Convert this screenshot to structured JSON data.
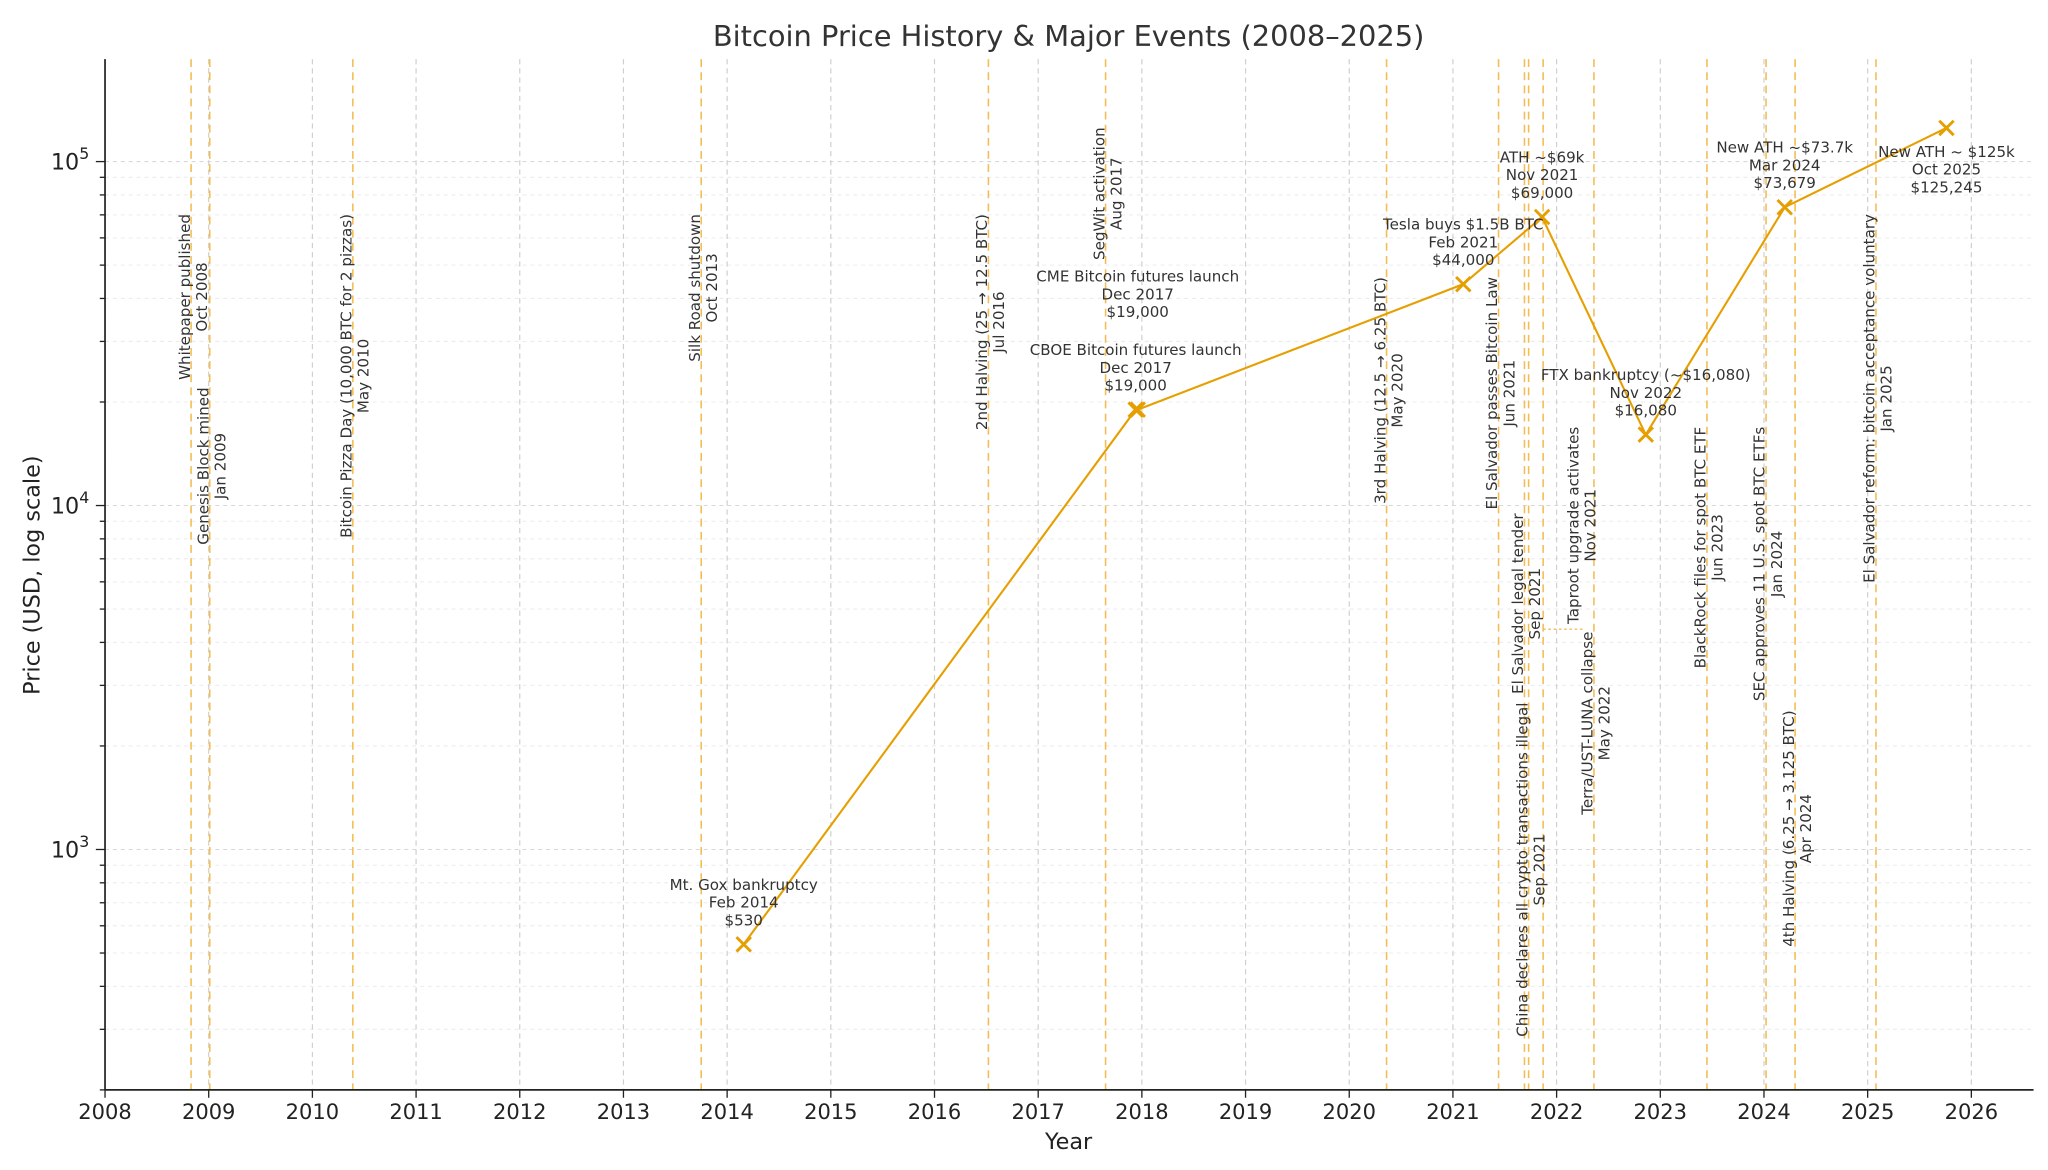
{
  "chart_data": {
    "type": "line",
    "title": "Bitcoin Price History & Major Events (2008–2025)",
    "xlabel": "Year",
    "ylabel": "Price (USD, log scale)",
    "y_scale": "log",
    "xlim": [
      2008,
      2026.6
    ],
    "ylim": [
      200,
      198600
    ],
    "grid": true,
    "x_ticks": [
      "2008",
      "2009",
      "2010",
      "2011",
      "2012",
      "2013",
      "2014",
      "2015",
      "2016",
      "2017",
      "2018",
      "2019",
      "2020",
      "2021",
      "2022",
      "2023",
      "2024",
      "2025",
      "2026"
    ],
    "y_ticks": [
      {
        "value": 1000,
        "base": "10",
        "exp": "3"
      },
      {
        "value": 10000,
        "base": "10",
        "exp": "4"
      },
      {
        "value": 100000,
        "base": "10",
        "exp": "5"
      }
    ],
    "colors": {
      "price_line": "#e69f00",
      "event_line": "#f3bd55",
      "grid": "#cfcfcf",
      "text": "#333333"
    },
    "series": [
      {
        "marker": "x",
        "points": [
          {
            "x": 2014.16,
            "y": 530,
            "label": "Mt. Gox bankruptcy",
            "date": "Feb 2014",
            "price": "$530"
          },
          {
            "x": 2017.94,
            "y": 19000,
            "label": "CBOE Bitcoin futures launch",
            "date": "Dec 2017",
            "price": "$19,000"
          },
          {
            "x": 2017.96,
            "y": 19000,
            "label": "CME Bitcoin futures launch",
            "date": "Dec 2017",
            "price": "$19,000"
          },
          {
            "x": 2021.1,
            "y": 44000,
            "label": "Tesla buys $1.5B BTC",
            "date": "Feb 2021",
            "price": "$44,000"
          },
          {
            "x": 2021.86,
            "y": 69000,
            "label": "ATH ~$69k",
            "date": "Nov 2021",
            "price": "$69,000"
          },
          {
            "x": 2022.86,
            "y": 16080,
            "label": "FTX bankruptcy (~$16,080)",
            "date": "Nov 2022",
            "price": "$16,080"
          },
          {
            "x": 2024.2,
            "y": 73679,
            "label": "New ATH ~$73.7k",
            "date": "Mar 2024",
            "price": "$73,679"
          },
          {
            "x": 2025.76,
            "y": 125245,
            "label": "New ATH ~ $125k",
            "date": "Oct 2025",
            "price": "$125,245"
          }
        ]
      }
    ],
    "events": [
      {
        "x": 2008.83,
        "label": "Whitepaper published",
        "date": "Oct 2008"
      },
      {
        "x": 2009.01,
        "label": "Genesis Block mined",
        "date": "Jan 2009"
      },
      {
        "x": 2010.39,
        "label": "Bitcoin Pizza Day (10,000 BTC for 2 pizzas)",
        "date": "May 2010"
      },
      {
        "x": 2013.75,
        "label": "Silk Road shutdown",
        "date": "Oct 2013"
      },
      {
        "x": 2016.52,
        "label": "2nd Halving (25 → 12.5 BTC)",
        "date": "Jul 2016"
      },
      {
        "x": 2017.65,
        "label": "SegWit activation",
        "date": "Aug 2017"
      },
      {
        "x": 2020.36,
        "label": "3rd Halving (12.5 → 6.25 BTC)",
        "date": "May 2020"
      },
      {
        "x": 2021.44,
        "label": "El Salvador passes Bitcoin Law",
        "date": "Jun 2021"
      },
      {
        "x": 2021.69,
        "label": "El Salvador legal tender",
        "date": "Sep 2021"
      },
      {
        "x": 2021.73,
        "label": "China declares all crypto transactions illegal",
        "date": "Sep 2021"
      },
      {
        "x": 2021.87,
        "label": "Taproot upgrade activates",
        "date": "Nov 2021"
      },
      {
        "x": 2022.36,
        "label": "Terra/UST-LUNA collapse",
        "date": "May 2022"
      },
      {
        "x": 2023.45,
        "label": "BlackRock files for spot BTC ETF",
        "date": "Jun 2023"
      },
      {
        "x": 2024.02,
        "label": "SEC approves 11 U.S. spot BTC ETFs",
        "date": "Jan 2024"
      },
      {
        "x": 2024.3,
        "label": "4th Halving (6.25 → 3.125 BTC)",
        "date": "Apr 2024"
      },
      {
        "x": 2025.08,
        "label": "El Salvador reform: bitcoin acceptance voluntary",
        "date": "Jan 2025"
      }
    ]
  }
}
